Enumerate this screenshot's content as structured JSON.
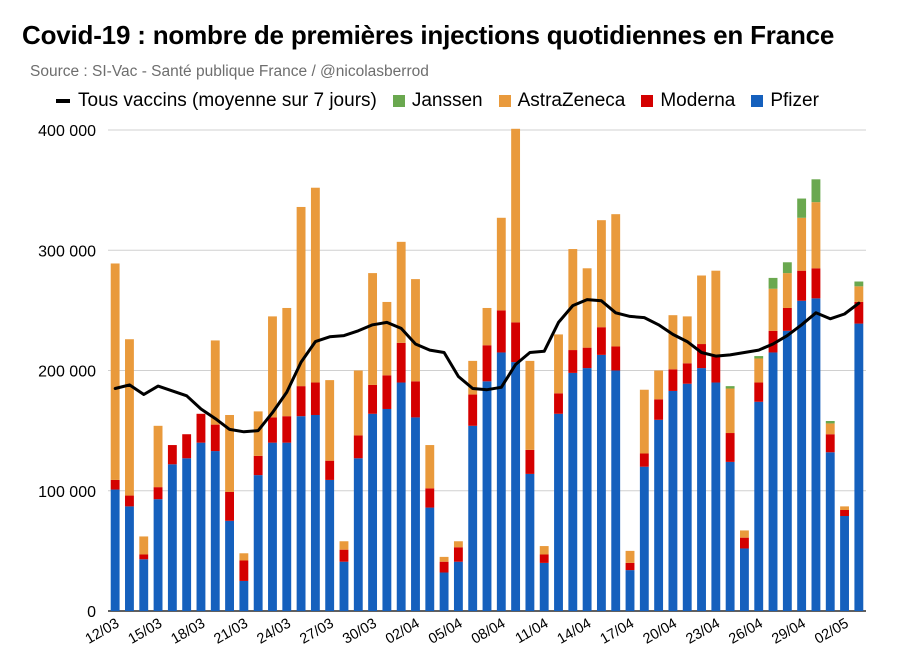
{
  "title": "Covid-19 : nombre de premières injections quotidiennes en France",
  "source": "Source : SI-Vac - Santé publique France / @nicolasberrod",
  "legend": {
    "line": "Tous vaccins (moyenne sur 7 jours)",
    "janssen": "Janssen",
    "astrazeneca": "AstraZeneca",
    "moderna": "Moderna",
    "pfizer": "Pfizer"
  },
  "colors": {
    "pfizer": "#1560bd",
    "moderna": "#d40000",
    "astrazeneca": "#e99a3c",
    "janssen": "#6aa84f",
    "line": "#000000",
    "grid": "#d0d0d0"
  },
  "chart_data": {
    "type": "bar",
    "stacked": true,
    "ylim": [
      0,
      400000
    ],
    "y_ticks": [
      0,
      100000,
      200000,
      300000,
      400000
    ],
    "y_tick_labels": [
      "0",
      "100 000",
      "200 000",
      "300 000",
      "400 000"
    ],
    "grid": true,
    "legend_position": "top",
    "categories": [
      "12/03",
      "13/03",
      "14/03",
      "15/03",
      "16/03",
      "17/03",
      "18/03",
      "19/03",
      "20/03",
      "21/03",
      "22/03",
      "23/03",
      "24/03",
      "25/03",
      "26/03",
      "27/03",
      "28/03",
      "29/03",
      "30/03",
      "31/03",
      "01/04",
      "02/04",
      "03/04",
      "04/04",
      "05/04",
      "06/04",
      "07/04",
      "08/04",
      "09/04",
      "10/04",
      "11/04",
      "12/04",
      "13/04",
      "14/04",
      "15/04",
      "16/04",
      "17/04",
      "18/04",
      "19/04",
      "20/04",
      "21/04",
      "22/04",
      "23/04",
      "24/04",
      "25/04",
      "26/04",
      "27/04",
      "28/04",
      "29/04",
      "30/04",
      "01/05",
      "02/05",
      "03/05"
    ],
    "x_tick_labels": [
      "12/03",
      "15/03",
      "18/03",
      "21/03",
      "24/03",
      "27/03",
      "30/03",
      "02/04",
      "05/04",
      "08/04",
      "11/04",
      "14/04",
      "17/04",
      "20/04",
      "23/04",
      "26/04",
      "29/04",
      "02/05"
    ],
    "series": [
      {
        "name": "Pfizer",
        "values": [
          101000,
          87000,
          43000,
          93000,
          122000,
          127000,
          140000,
          133000,
          75000,
          25000,
          113000,
          140000,
          140000,
          162000,
          163000,
          109000,
          41000,
          127000,
          164000,
          168000,
          190000,
          161000,
          86000,
          32000,
          41000,
          154000,
          191000,
          215000,
          207000,
          114000,
          40000,
          164000,
          198000,
          202000,
          213000,
          200000,
          34000,
          120000,
          159000,
          183000,
          189000,
          202000,
          190000,
          124000,
          52000,
          174000,
          215000,
          233000,
          258000,
          260000,
          132000,
          79000,
          239000
        ]
      },
      {
        "name": "Moderna",
        "values": [
          8000,
          9000,
          4000,
          10000,
          16000,
          20000,
          24000,
          22000,
          24000,
          17000,
          16000,
          21000,
          22000,
          25000,
          27000,
          16000,
          10000,
          19000,
          24000,
          28000,
          33000,
          30000,
          16000,
          9000,
          12000,
          26000,
          30000,
          35000,
          33000,
          20000,
          7000,
          17000,
          19000,
          17000,
          23000,
          20000,
          6000,
          11000,
          17000,
          18000,
          17000,
          20000,
          23000,
          24000,
          9000,
          16000,
          18000,
          19000,
          25000,
          25000,
          15000,
          5000,
          18000
        ]
      },
      {
        "name": "AstraZeneca",
        "values": [
          180000,
          130000,
          15000,
          51000,
          0,
          0,
          0,
          70000,
          64000,
          6000,
          37000,
          84000,
          90000,
          149000,
          162000,
          67000,
          7000,
          54000,
          93000,
          61000,
          84000,
          85000,
          36000,
          4000,
          5000,
          28000,
          31000,
          77000,
          161000,
          74000,
          7000,
          49000,
          84000,
          66000,
          89000,
          110000,
          10000,
          53000,
          24000,
          45000,
          39000,
          57000,
          70000,
          37000,
          6000,
          20000,
          35000,
          29000,
          44000,
          55000,
          9000,
          3000,
          13000
        ]
      },
      {
        "name": "Janssen",
        "values": [
          0,
          0,
          0,
          0,
          0,
          0,
          0,
          0,
          0,
          0,
          0,
          0,
          0,
          0,
          0,
          0,
          0,
          0,
          0,
          0,
          0,
          0,
          0,
          0,
          0,
          0,
          0,
          0,
          0,
          0,
          0,
          0,
          0,
          0,
          0,
          0,
          0,
          0,
          0,
          0,
          0,
          0,
          0,
          2000,
          0,
          2000,
          9000,
          9000,
          16000,
          19000,
          2000,
          0,
          4000
        ]
      },
      {
        "name": "Tous vaccins (moyenne sur 7 jours)",
        "type": "line",
        "values": [
          185000,
          188000,
          180000,
          187000,
          183000,
          179000,
          168000,
          160000,
          151000,
          149000,
          150000,
          165000,
          182000,
          207000,
          224000,
          228000,
          229000,
          233000,
          238000,
          240000,
          235000,
          222000,
          217000,
          215000,
          195000,
          185000,
          184000,
          186000,
          205000,
          215000,
          216000,
          240000,
          254000,
          259000,
          258000,
          248000,
          245000,
          244000,
          238000,
          230000,
          224000,
          215000,
          212000,
          213000,
          215000,
          217000,
          222000,
          229000,
          238000,
          248000,
          243000,
          247000,
          256000
        ]
      }
    ]
  }
}
